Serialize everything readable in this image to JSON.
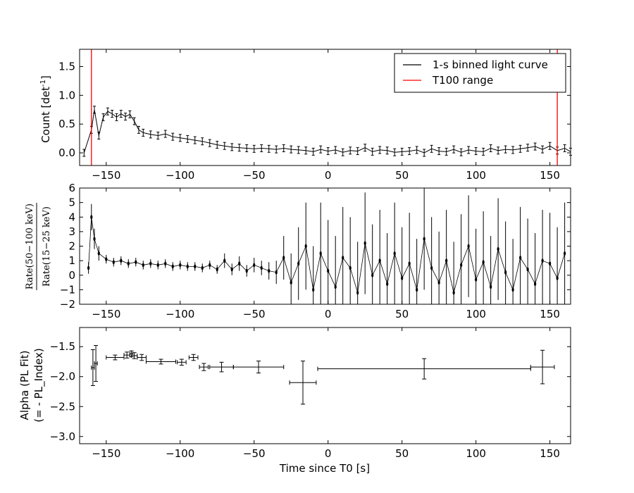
{
  "chart_data": [
    {
      "type": "line",
      "ylabel_main": "Count [det",
      "ylabel_sup": "-1",
      "ylabel_end": "]",
      "xlim": [
        -168,
        164
      ],
      "ylim": [
        -0.22,
        1.8
      ],
      "xticks": [
        -150,
        -100,
        -50,
        0,
        50,
        100,
        150
      ],
      "yticks": [
        0.0,
        0.5,
        1.0,
        1.5
      ],
      "ytick_labels": [
        "0.0",
        "0.5",
        "1.0",
        "1.5"
      ],
      "legend": {
        "position": "top-right",
        "entries": [
          {
            "label": "1-s binned light curve",
            "color": "#000000"
          },
          {
            "label": "T100 range",
            "color": "#ff0000"
          }
        ]
      },
      "vlines": [
        -160,
        155
      ],
      "series": [
        {
          "x": [
            -165,
            -160,
            -158,
            -155,
            -152,
            -149,
            -146,
            -143,
            -140,
            -137,
            -134,
            -131,
            -128,
            -125,
            -120,
            -115,
            -110,
            -105,
            -100,
            -95,
            -90,
            -85,
            -80,
            -75,
            -70,
            -65,
            -60,
            -55,
            -50,
            -45,
            -40,
            -35,
            -30,
            -25,
            -20,
            -15,
            -10,
            -5,
            0,
            5,
            10,
            15,
            20,
            25,
            30,
            35,
            40,
            45,
            50,
            55,
            60,
            65,
            70,
            75,
            80,
            85,
            90,
            95,
            100,
            105,
            110,
            115,
            120,
            125,
            130,
            135,
            140,
            145,
            150,
            155,
            160,
            164
          ],
          "y": [
            0.0,
            0.4,
            0.75,
            0.3,
            0.62,
            0.72,
            0.68,
            0.62,
            0.68,
            0.63,
            0.67,
            0.55,
            0.4,
            0.35,
            0.32,
            0.3,
            0.33,
            0.28,
            0.26,
            0.24,
            0.22,
            0.2,
            0.17,
            0.14,
            0.12,
            0.1,
            0.09,
            0.08,
            0.07,
            0.08,
            0.07,
            0.06,
            0.08,
            0.06,
            0.05,
            0.04,
            0.02,
            0.06,
            0.03,
            0.05,
            0.01,
            0.04,
            0.03,
            0.09,
            0.02,
            0.05,
            0.04,
            0.01,
            0.02,
            0.03,
            0.05,
            0.0,
            0.07,
            0.03,
            0.02,
            0.06,
            0.01,
            0.05,
            0.03,
            0.02,
            0.08,
            0.04,
            0.06,
            0.05,
            0.07,
            0.09,
            0.11,
            0.06,
            0.12,
            0.04,
            0.08,
            0.02
          ]
        }
      ]
    },
    {
      "type": "scatter",
      "ylabel_line1": "Rate(50−100 keV)",
      "ylabel_line2": "Rate(15−25 keV)",
      "xlim": [
        -168,
        164
      ],
      "ylim": [
        -2,
        6
      ],
      "xticks": [
        -150,
        -100,
        -50,
        0,
        50,
        100,
        150
      ],
      "yticks": [
        -2,
        -1,
        0,
        1,
        2,
        3,
        4,
        5,
        6
      ],
      "ytick_labels": [
        "−2",
        "−1",
        "0",
        "1",
        "2",
        "3",
        "4",
        "5",
        "6"
      ],
      "series": [
        {
          "x": [
            -162,
            -160,
            -158,
            -155,
            -150,
            -145,
            -140,
            -135,
            -130,
            -125,
            -120,
            -115,
            -110,
            -105,
            -100,
            -95,
            -90,
            -85,
            -80,
            -75,
            -70,
            -65,
            -60,
            -55,
            -50,
            -45,
            -40,
            -35,
            -30,
            -25,
            -20,
            -15,
            -10,
            -5,
            0,
            5,
            10,
            15,
            20,
            25,
            30,
            35,
            40,
            45,
            50,
            55,
            60,
            65,
            70,
            75,
            80,
            85,
            90,
            95,
            100,
            105,
            110,
            115,
            120,
            125,
            130,
            135,
            140,
            145,
            150,
            155,
            160
          ],
          "y": [
            0.5,
            4.0,
            2.5,
            1.5,
            1.1,
            0.9,
            1.0,
            0.8,
            0.9,
            0.7,
            0.8,
            0.7,
            0.8,
            0.6,
            0.7,
            0.6,
            0.6,
            0.5,
            0.7,
            0.4,
            1.0,
            0.4,
            0.8,
            0.3,
            0.7,
            0.5,
            0.3,
            0.2,
            1.2,
            -0.5,
            0.8,
            2.0,
            -1.0,
            1.5,
            0.3,
            -0.8,
            1.2,
            0.5,
            -1.2,
            2.2,
            0.0,
            1.0,
            -0.6,
            1.5,
            -0.2,
            0.8,
            -1.0,
            2.5,
            0.5,
            -0.5,
            1.0,
            -1.2,
            0.7,
            2.0,
            -0.3,
            0.9,
            -0.8,
            1.8,
            0.2,
            -1.0,
            1.2,
            0.4,
            -0.6,
            1.0,
            0.8,
            -0.2,
            1.5
          ],
          "err": [
            0.4,
            0.9,
            0.7,
            0.5,
            0.3,
            0.3,
            0.3,
            0.3,
            0.3,
            0.3,
            0.3,
            0.3,
            0.3,
            0.3,
            0.3,
            0.3,
            0.3,
            0.3,
            0.3,
            0.3,
            0.5,
            0.4,
            0.5,
            0.4,
            0.5,
            0.5,
            0.6,
            0.8,
            1.5,
            2.0,
            2.5,
            3.0,
            3.0,
            3.5,
            3.5,
            3.5,
            3.5,
            3.5,
            3.5,
            3.5,
            3.5,
            3.5,
            3.5,
            3.5,
            3.5,
            3.5,
            3.5,
            3.5,
            3.5,
            3.5,
            3.5,
            3.5,
            3.5,
            3.5,
            3.5,
            3.5,
            3.5,
            3.5,
            3.5,
            3.5,
            3.5,
            3.5,
            3.5,
            3.5,
            3.5,
            3.5,
            3.5
          ]
        }
      ]
    },
    {
      "type": "scatter",
      "ylabel_line1": "Alpha (PL Fit)",
      "ylabel_line2": "(= - PL_Index)",
      "xlabel": "Time since T0 [s]",
      "xlim": [
        -168,
        164
      ],
      "ylim": [
        -3.12,
        -1.18
      ],
      "xticks": [
        -150,
        -100,
        -50,
        0,
        50,
        100,
        150
      ],
      "xtick_labels": [
        "−150",
        "−100",
        "−50",
        "0",
        "50",
        "100",
        "150"
      ],
      "yticks": [
        -3.0,
        -2.5,
        -2.0,
        -1.5
      ],
      "ytick_labels": [
        "−3.0",
        "−2.5",
        "−2.0",
        "−1.5"
      ],
      "series": [
        {
          "x": [
            -159,
            -157,
            -144,
            -136,
            -133,
            -131,
            -126,
            -113,
            -99,
            -91,
            -84,
            -72,
            -47,
            -17,
            65,
            145
          ],
          "xerr_low": [
            1,
            1,
            6,
            2,
            1,
            2,
            3,
            10,
            3,
            3,
            3,
            8,
            17,
            9,
            72,
            8
          ],
          "xerr_high": [
            1,
            1,
            6,
            2,
            1,
            2,
            3,
            10,
            3,
            3,
            3,
            8,
            17,
            9,
            72,
            8
          ],
          "y": [
            -1.85,
            -1.78,
            -1.68,
            -1.64,
            -1.62,
            -1.65,
            -1.68,
            -1.75,
            -1.76,
            -1.68,
            -1.84,
            -1.84,
            -1.84,
            -2.1,
            -1.87,
            -1.84
          ],
          "yerr": [
            0.3,
            0.3,
            0.04,
            0.05,
            0.05,
            0.05,
            0.05,
            0.04,
            0.05,
            0.05,
            0.06,
            0.08,
            0.1,
            0.36,
            0.17,
            0.28
          ]
        }
      ]
    }
  ]
}
